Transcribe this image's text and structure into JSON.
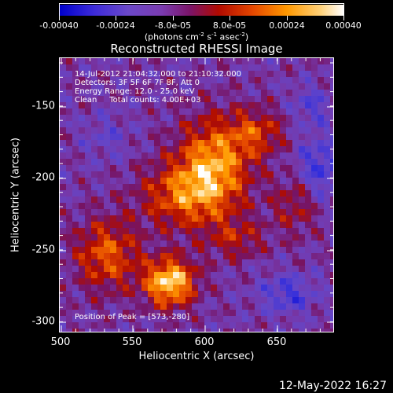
{
  "colorbar": {
    "labels": [
      "-0.00040",
      "-0.00024",
      "-8.0e-05",
      "8.0e-05",
      "0.00024",
      "0.00040"
    ],
    "unit_prefix": "(photons cm",
    "unit_exp1": "-2",
    "unit_mid1": " s",
    "unit_exp2": "-1",
    "unit_mid2": " asec",
    "unit_exp3": "-2",
    "unit_suffix": ")",
    "colors": [
      "#0000cc",
      "#3d2bd9",
      "#6b48c9",
      "#7a3bb0",
      "#7b1468",
      "#b10a00",
      "#e54700",
      "#ff9800",
      "#ffd27a",
      "#ffffff"
    ]
  },
  "title": "Reconstructed RHESSI Image",
  "info": {
    "time_range": "14-Jul-2012 21:04:32.000 to 21:10:32.000",
    "detectors": "Detectors: 3F 5F 6F 7F 8F, Att 0",
    "energy": "Energy Range: 12.0 - 25.0 keV",
    "clean": "Clean     Total counts: 4.00E+03",
    "peak": "Position of Peak = [573,-280]"
  },
  "axes": {
    "xlabel": "Heliocentric X (arcsec)",
    "ylabel": "Heliocentric Y (arcsec)",
    "xticks": [
      "500",
      "550",
      "600",
      "650"
    ],
    "yticks": [
      "-150",
      "-200",
      "-250",
      "-300"
    ]
  },
  "timestamp": "12-May-2022 16:27"
}
